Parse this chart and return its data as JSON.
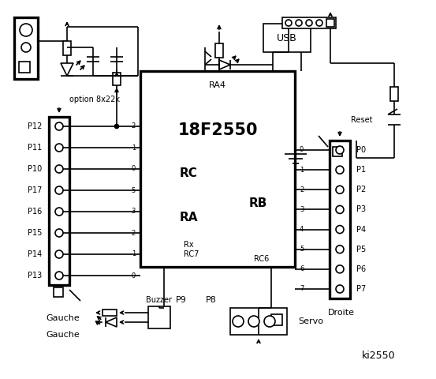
{
  "bg_color": "#ffffff",
  "chip_label": "18F2550",
  "chip_sub": "RA4",
  "rc_label": "RC",
  "ra_label": "RA",
  "rb_label": "RB",
  "left_labels": [
    "P12",
    "P11",
    "P10",
    "P17",
    "P16",
    "P15",
    "P14",
    "P13"
  ],
  "left_pins": [
    "2",
    "1",
    "0",
    "5",
    "3",
    "2",
    "1",
    "0"
  ],
  "right_labels": [
    "P0",
    "P1",
    "P2",
    "P3",
    "P4",
    "P5",
    "P6",
    "P7"
  ],
  "right_pins": [
    "0",
    "1",
    "2",
    "3",
    "4",
    "5",
    "6",
    "7"
  ],
  "usb_label": "USB",
  "reset_label": "Reset",
  "option_label": "option 8x22k",
  "rx_label": "Rx",
  "rc7_label": "RC7",
  "rc6_label": "RC6",
  "gauche_label": "Gauche",
  "droite_label": "Droite",
  "buzzer_label": "Buzzer",
  "p9_label": "P9",
  "p8_label": "P8",
  "servo_label": "Servo",
  "sig_label": "ki2550"
}
